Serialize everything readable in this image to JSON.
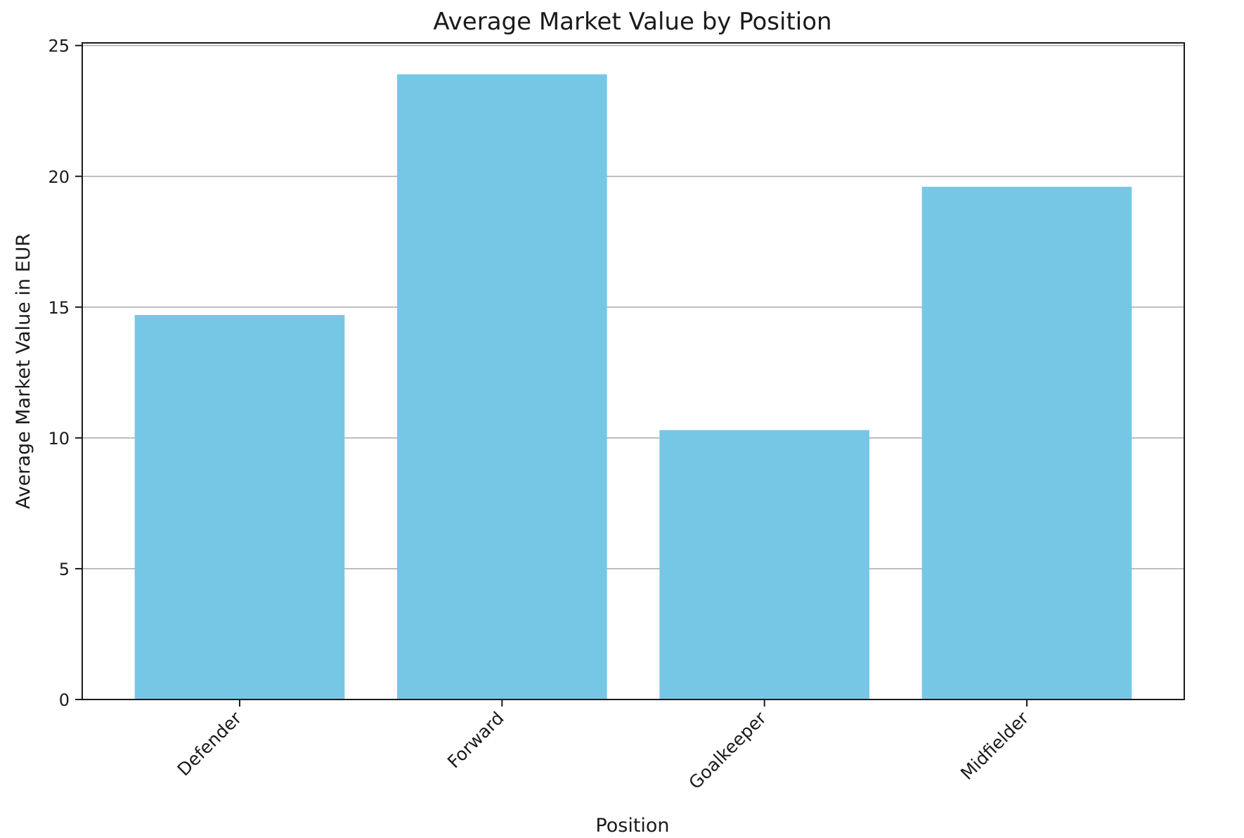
{
  "chart_data": {
    "type": "bar",
    "title": "Average Market Value by Position",
    "xlabel": "Position",
    "ylabel": "Average Market Value in EUR",
    "categories": [
      "Defender",
      "Forward",
      "Goalkeeper",
      "Midfielder"
    ],
    "values": [
      14.7,
      23.9,
      10.3,
      19.6
    ],
    "ylim": [
      0,
      25.1
    ],
    "yticks": [
      0,
      5,
      10,
      15,
      20,
      25
    ],
    "grid": "horizontal",
    "bar_color": "#76c7e6",
    "x_tick_rotation": -45
  }
}
